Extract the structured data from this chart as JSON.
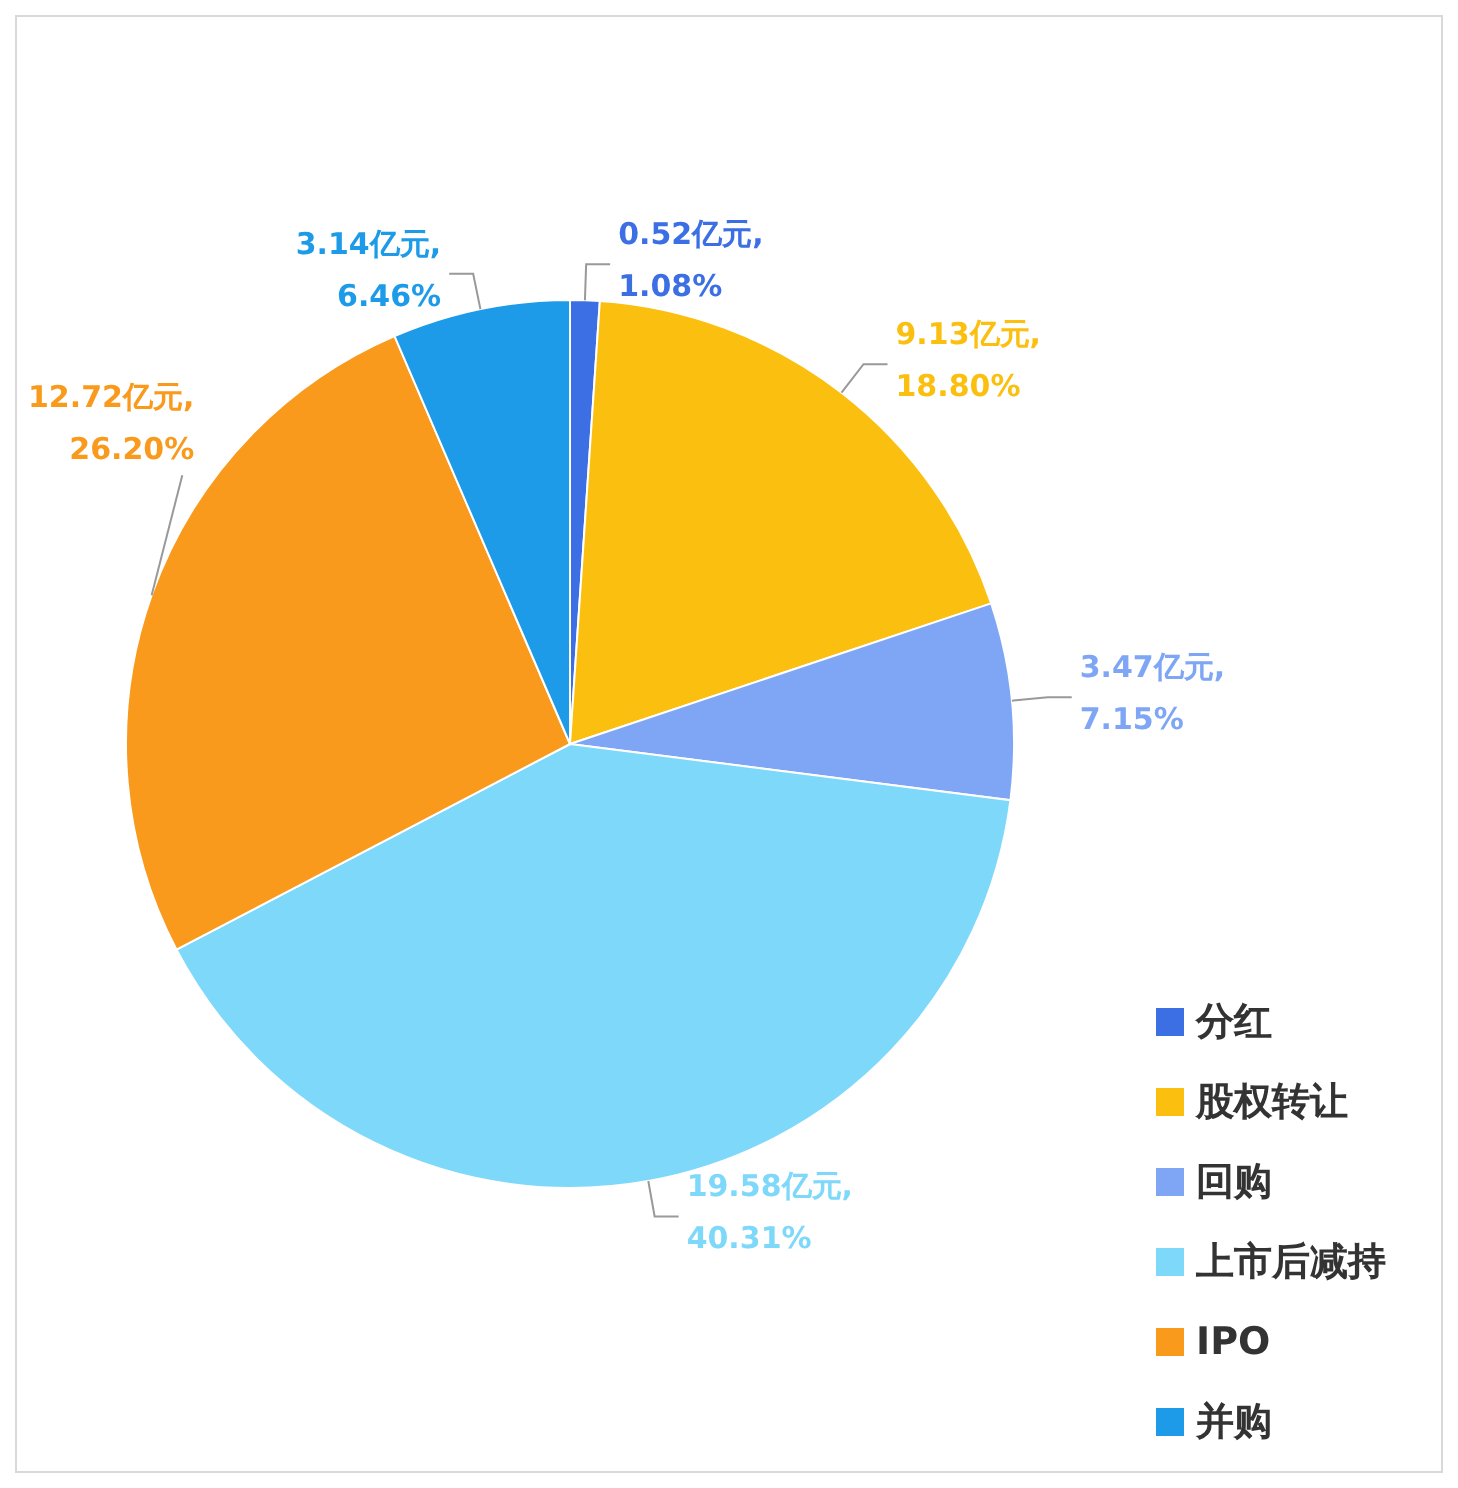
{
  "chart_data": {
    "type": "pie",
    "categories": [
      "分红",
      "股权转让",
      "回购",
      "上市后减持",
      "IPO",
      "并购"
    ],
    "values": [
      0.52,
      9.13,
      3.47,
      19.58,
      12.72,
      3.14
    ],
    "colors": [
      "#3b6fe3",
      "#fbbf10",
      "#7fa6f5",
      "#7dd8fa",
      "#f99a1c",
      "#1e9be8"
    ],
    "value_labels": [
      "0.52亿元,\n1.08%",
      "9.13亿元,\n18.80%",
      "3.47亿元,\n7.15%",
      "19.58亿元,\n40.31%",
      "12.72亿元,\n26.20%",
      "3.14亿元,\n6.46%"
    ],
    "legend": "bottom right"
  }
}
